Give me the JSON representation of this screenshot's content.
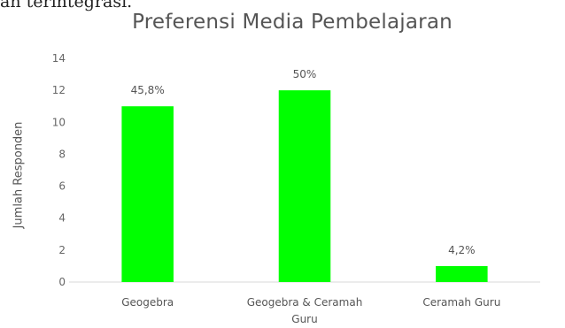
{
  "top_fragment": "an terintegrasi.",
  "chart_data": {
    "type": "bar",
    "title": "Preferensi Media Pembelajaran",
    "xlabel": "",
    "ylabel": "Jumlah Responden",
    "categories": [
      "Geogebra",
      "Geogebra & Ceramah Guru",
      "Ceramah Guru"
    ],
    "category_lines": [
      [
        "Geogebra"
      ],
      [
        "Geogebra & Ceramah",
        "Guru"
      ],
      [
        "Ceramah Guru"
      ]
    ],
    "values": [
      11,
      12,
      1
    ],
    "data_labels": [
      "45,8%",
      "50%",
      "4,2%"
    ],
    "yticks": [
      0,
      2,
      4,
      6,
      8,
      10,
      12,
      14
    ],
    "ylim": [
      0,
      14
    ],
    "grid": false,
    "legend": "none",
    "bar_color": "#00ff00"
  }
}
